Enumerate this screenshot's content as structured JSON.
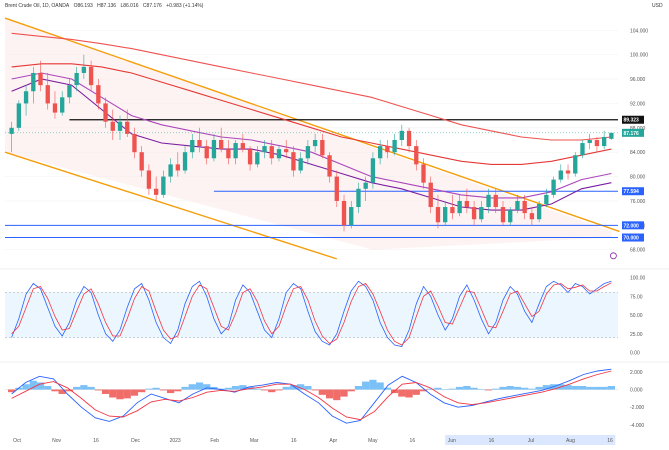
{
  "header": {
    "symbol": "Brent Crude Oil, 1D, OANDA",
    "open": "O86.193",
    "high": "H87.136",
    "low": "L86.016",
    "close": "C87.176",
    "change": "+0.983 (+1.14%)"
  },
  "currency": "USD",
  "chart_data": [
    {
      "type": "candlestick",
      "panel": "price",
      "title": "Brent Crude Oil, 1D, OANDA",
      "y_ticks": [
        68,
        72,
        76,
        80,
        84,
        88,
        92,
        96,
        100,
        104
      ],
      "y_tick_labels": [
        "68.000",
        "72.000",
        "76.000",
        "80.000",
        "84.000",
        "88.000",
        "92.000",
        "96.000",
        "100.000",
        "104.000"
      ],
      "ylim": [
        65,
        107
      ],
      "x_tick_labels": [
        "Oct",
        "Nov",
        "16",
        "Dec",
        "2023",
        "Feb",
        "Mar",
        "16",
        "Apr",
        "May",
        "16",
        "Jun",
        "16",
        "Jul",
        "Aug",
        "16"
      ],
      "horizontal_levels": [
        {
          "value": 89.323,
          "label": "89.323",
          "color": "#111111"
        },
        {
          "value": 77.594,
          "label": "77.594",
          "color": "#2962ff"
        },
        {
          "value": 72.0,
          "label": "72.000",
          "color": "#2962ff"
        },
        {
          "value": 70.0,
          "label": "70.000",
          "color": "#2962ff"
        }
      ],
      "last_price": {
        "value": 87.176,
        "label": "87.176",
        "color": "#26a69a"
      },
      "candles": [
        {
          "o": 87.0,
          "h": 89.0,
          "l": 84.0,
          "c": 88.0
        },
        {
          "o": 88.0,
          "h": 92.5,
          "l": 87.5,
          "c": 92.0
        },
        {
          "o": 92.0,
          "h": 95.0,
          "l": 90.0,
          "c": 94.0
        },
        {
          "o": 94.0,
          "h": 98.0,
          "l": 92.0,
          "c": 97.0
        },
        {
          "o": 97.0,
          "h": 99.0,
          "l": 94.0,
          "c": 95.0
        },
        {
          "o": 95.0,
          "h": 97.0,
          "l": 91.0,
          "c": 92.0
        },
        {
          "o": 92.0,
          "h": 94.0,
          "l": 89.5,
          "c": 90.5
        },
        {
          "o": 90.5,
          "h": 94.0,
          "l": 90.0,
          "c": 93.0
        },
        {
          "o": 93.0,
          "h": 96.0,
          "l": 92.0,
          "c": 95.0
        },
        {
          "o": 95.0,
          "h": 98.0,
          "l": 94.0,
          "c": 97.0
        },
        {
          "o": 97.0,
          "h": 100.0,
          "l": 96.0,
          "c": 98.0
        },
        {
          "o": 98.0,
          "h": 99.0,
          "l": 94.0,
          "c": 95.0
        },
        {
          "o": 95.0,
          "h": 96.0,
          "l": 91.0,
          "c": 92.0
        },
        {
          "o": 92.0,
          "h": 93.0,
          "l": 88.0,
          "c": 89.0
        },
        {
          "o": 89.0,
          "h": 91.0,
          "l": 86.0,
          "c": 87.5
        },
        {
          "o": 87.5,
          "h": 90.0,
          "l": 86.0,
          "c": 89.0
        },
        {
          "o": 89.0,
          "h": 91.0,
          "l": 86.5,
          "c": 87.0
        },
        {
          "o": 87.0,
          "h": 88.0,
          "l": 83.0,
          "c": 84.0
        },
        {
          "o": 84.0,
          "h": 85.0,
          "l": 80.0,
          "c": 81.0
        },
        {
          "o": 81.0,
          "h": 82.0,
          "l": 77.0,
          "c": 78.0
        },
        {
          "o": 78.0,
          "h": 80.0,
          "l": 76.0,
          "c": 77.0
        },
        {
          "o": 77.0,
          "h": 81.0,
          "l": 76.5,
          "c": 80.0
        },
        {
          "o": 80.0,
          "h": 83.0,
          "l": 79.0,
          "c": 82.0
        },
        {
          "o": 82.0,
          "h": 84.0,
          "l": 80.0,
          "c": 81.0
        },
        {
          "o": 81.0,
          "h": 85.0,
          "l": 80.5,
          "c": 84.0
        },
        {
          "o": 84.0,
          "h": 87.0,
          "l": 83.0,
          "c": 86.0
        },
        {
          "o": 86.0,
          "h": 88.0,
          "l": 84.0,
          "c": 85.0
        },
        {
          "o": 85.0,
          "h": 86.0,
          "l": 82.0,
          "c": 83.0
        },
        {
          "o": 83.0,
          "h": 87.0,
          "l": 82.5,
          "c": 86.0
        },
        {
          "o": 86.0,
          "h": 88.0,
          "l": 84.0,
          "c": 84.5
        },
        {
          "o": 84.5,
          "h": 86.0,
          "l": 82.0,
          "c": 83.0
        },
        {
          "o": 83.0,
          "h": 86.0,
          "l": 82.0,
          "c": 85.5
        },
        {
          "o": 85.5,
          "h": 87.0,
          "l": 84.0,
          "c": 84.5
        },
        {
          "o": 84.5,
          "h": 85.0,
          "l": 81.0,
          "c": 82.0
        },
        {
          "o": 82.0,
          "h": 85.0,
          "l": 81.5,
          "c": 84.0
        },
        {
          "o": 84.0,
          "h": 86.0,
          "l": 83.0,
          "c": 85.0
        },
        {
          "o": 85.0,
          "h": 86.0,
          "l": 82.0,
          "c": 83.0
        },
        {
          "o": 83.0,
          "h": 85.0,
          "l": 82.5,
          "c": 84.5
        },
        {
          "o": 84.5,
          "h": 86.0,
          "l": 83.0,
          "c": 84.0
        },
        {
          "o": 84.0,
          "h": 85.0,
          "l": 80.0,
          "c": 81.0
        },
        {
          "o": 81.0,
          "h": 84.0,
          "l": 80.5,
          "c": 83.0
        },
        {
          "o": 83.0,
          "h": 86.0,
          "l": 82.0,
          "c": 85.0
        },
        {
          "o": 85.0,
          "h": 87.0,
          "l": 84.0,
          "c": 86.0
        },
        {
          "o": 86.0,
          "h": 87.0,
          "l": 83.0,
          "c": 83.5
        },
        {
          "o": 83.5,
          "h": 84.0,
          "l": 79.0,
          "c": 80.0
        },
        {
          "o": 80.0,
          "h": 81.0,
          "l": 75.0,
          "c": 76.0
        },
        {
          "o": 76.0,
          "h": 77.0,
          "l": 71.0,
          "c": 72.0
        },
        {
          "o": 72.0,
          "h": 76.0,
          "l": 71.5,
          "c": 75.0
        },
        {
          "o": 75.0,
          "h": 79.0,
          "l": 74.0,
          "c": 78.0
        },
        {
          "o": 78.0,
          "h": 80.0,
          "l": 76.0,
          "c": 79.0
        },
        {
          "o": 79.0,
          "h": 84.0,
          "l": 78.0,
          "c": 83.0
        },
        {
          "o": 83.0,
          "h": 86.0,
          "l": 82.0,
          "c": 85.0
        },
        {
          "o": 85.0,
          "h": 86.0,
          "l": 83.0,
          "c": 84.0
        },
        {
          "o": 84.0,
          "h": 87.0,
          "l": 83.5,
          "c": 86.0
        },
        {
          "o": 86.0,
          "h": 88.5,
          "l": 85.0,
          "c": 87.5
        },
        {
          "o": 87.5,
          "h": 88.0,
          "l": 84.0,
          "c": 85.0
        },
        {
          "o": 85.0,
          "h": 86.0,
          "l": 81.0,
          "c": 82.0
        },
        {
          "o": 82.0,
          "h": 83.0,
          "l": 78.0,
          "c": 79.0
        },
        {
          "o": 79.0,
          "h": 80.0,
          "l": 74.0,
          "c": 75.0
        },
        {
          "o": 75.0,
          "h": 77.0,
          "l": 71.5,
          "c": 72.5
        },
        {
          "o": 72.5,
          "h": 76.0,
          "l": 72.0,
          "c": 75.0
        },
        {
          "o": 75.0,
          "h": 77.0,
          "l": 73.0,
          "c": 74.0
        },
        {
          "o": 74.0,
          "h": 77.0,
          "l": 73.5,
          "c": 76.0
        },
        {
          "o": 76.0,
          "h": 78.0,
          "l": 74.0,
          "c": 75.0
        },
        {
          "o": 75.0,
          "h": 76.0,
          "l": 72.0,
          "c": 73.0
        },
        {
          "o": 73.0,
          "h": 76.0,
          "l": 72.5,
          "c": 75.0
        },
        {
          "o": 75.0,
          "h": 78.0,
          "l": 74.0,
          "c": 77.0
        },
        {
          "o": 77.0,
          "h": 78.0,
          "l": 74.0,
          "c": 75.0
        },
        {
          "o": 75.0,
          "h": 76.0,
          "l": 72.0,
          "c": 72.5
        },
        {
          "o": 72.5,
          "h": 75.0,
          "l": 72.0,
          "c": 74.5
        },
        {
          "o": 74.5,
          "h": 77.0,
          "l": 74.0,
          "c": 76.0
        },
        {
          "o": 76.0,
          "h": 77.0,
          "l": 73.0,
          "c": 74.0
        },
        {
          "o": 74.0,
          "h": 75.0,
          "l": 72.0,
          "c": 73.0
        },
        {
          "o": 73.0,
          "h": 76.0,
          "l": 72.5,
          "c": 75.5
        },
        {
          "o": 75.5,
          "h": 78.0,
          "l": 75.0,
          "c": 77.0
        },
        {
          "o": 77.0,
          "h": 80.0,
          "l": 76.5,
          "c": 79.5
        },
        {
          "o": 79.5,
          "h": 82.0,
          "l": 79.0,
          "c": 81.0
        },
        {
          "o": 81.0,
          "h": 82.0,
          "l": 79.5,
          "c": 80.5
        },
        {
          "o": 80.5,
          "h": 84.0,
          "l": 80.0,
          "c": 83.5
        },
        {
          "o": 83.5,
          "h": 86.0,
          "l": 83.0,
          "c": 85.5
        },
        {
          "o": 85.5,
          "h": 87.0,
          "l": 84.5,
          "c": 86.0
        },
        {
          "o": 86.0,
          "h": 86.5,
          "l": 84.0,
          "c": 85.0
        },
        {
          "o": 85.0,
          "h": 87.5,
          "l": 84.5,
          "c": 86.5
        },
        {
          "o": 86.193,
          "h": 87.136,
          "l": 86.016,
          "c": 87.176
        }
      ],
      "moving_averages": [
        {
          "color": "#ef5350",
          "values": [
            103.5,
            103.0,
            102.5,
            101.8,
            101.0,
            100.0,
            99.0,
            98.0,
            97.0,
            96.0,
            95.0,
            94.0,
            93.0,
            91.5,
            90.0,
            88.5,
            87.5,
            86.5,
            86.0,
            86.0,
            86.5
          ]
        },
        {
          "color": "#e53935",
          "values": [
            98.0,
            98.5,
            98.5,
            98.0,
            97.0,
            95.5,
            94.0,
            92.5,
            91.0,
            89.5,
            88.0,
            86.5,
            85.5,
            84.5,
            83.5,
            82.5,
            82.0,
            82.0,
            82.5,
            83.5,
            84.5
          ]
        },
        {
          "color": "#ab47bc",
          "values": [
            96.0,
            97.0,
            96.0,
            93.0,
            90.0,
            88.5,
            87.5,
            86.5,
            86.0,
            85.0,
            84.0,
            82.0,
            80.0,
            79.0,
            78.0,
            77.0,
            76.5,
            76.5,
            77.5,
            79.5,
            80.5
          ]
        },
        {
          "color": "#7b1fa2",
          "values": [
            94.0,
            96.0,
            95.0,
            91.0,
            87.0,
            85.5,
            85.0,
            84.5,
            84.5,
            83.5,
            82.0,
            80.5,
            79.0,
            78.0,
            76.5,
            75.0,
            74.5,
            74.5,
            75.5,
            78.0,
            79.0
          ]
        }
      ],
      "trend_channel": {
        "color": "#f59e0b",
        "upper": [
          [
            0,
            106.0
          ],
          [
            83,
            71.0
          ]
        ],
        "lower": [
          [
            0,
            84.0
          ],
          [
            45,
            66.5
          ]
        ]
      }
    },
    {
      "type": "line",
      "panel": "stochastic",
      "y_ticks": [
        0,
        25,
        50,
        75,
        100
      ],
      "y_tick_labels": [
        "0.00",
        "25.00",
        "50.00",
        "75.00",
        "100.00"
      ],
      "ylim": [
        -10,
        110
      ],
      "bands": [
        20,
        80
      ],
      "series": [
        {
          "color": "#2962ff",
          "values": [
            20,
            45,
            78,
            92,
            85,
            60,
            35,
            22,
            40,
            70,
            88,
            80,
            50,
            25,
            15,
            30,
            60,
            85,
            92,
            70,
            40,
            20,
            12,
            30,
            65,
            88,
            95,
            75,
            45,
            25,
            35,
            70,
            90,
            80,
            55,
            30,
            20,
            45,
            80,
            92,
            85,
            55,
            28,
            15,
            10,
            25,
            55,
            82,
            95,
            88,
            70,
            40,
            20,
            10,
            8,
            30,
            65,
            88,
            75,
            50,
            30,
            45,
            75,
            90,
            70,
            45,
            25,
            40,
            70,
            88,
            78,
            55,
            40,
            65,
            88,
            95,
            90,
            80,
            92,
            88,
            78,
            85,
            92,
            95
          ]
        },
        {
          "color": "#f23645",
          "values": [
            25,
            35,
            60,
            85,
            88,
            72,
            48,
            30,
            32,
            55,
            78,
            85,
            65,
            40,
            22,
            22,
            45,
            72,
            88,
            82,
            55,
            30,
            18,
            22,
            48,
            75,
            90,
            85,
            60,
            35,
            30,
            52,
            80,
            85,
            68,
            42,
            25,
            35,
            62,
            85,
            88,
            70,
            42,
            22,
            12,
            18,
            40,
            68,
            88,
            92,
            78,
            55,
            30,
            15,
            10,
            20,
            48,
            75,
            82,
            62,
            40,
            38,
            60,
            82,
            80,
            58,
            35,
            33,
            55,
            78,
            82,
            65,
            48,
            55,
            78,
            90,
            92,
            85,
            87,
            90,
            82,
            82,
            88,
            93
          ]
        }
      ]
    },
    {
      "type": "bar",
      "panel": "macd",
      "y_ticks": [
        -4,
        -2,
        0,
        2
      ],
      "y_tick_labels": [
        "-4.000",
        "-2.000",
        "0.000",
        "2.000"
      ],
      "ylim": [
        -4.8,
        3.0
      ],
      "histogram": [
        -0.3,
        0.2,
        0.6,
        1.0,
        0.8,
        0.4,
        -0.2,
        -0.5,
        -0.2,
        0.3,
        0.5,
        0.3,
        -0.1,
        -0.5,
        -0.9,
        -1.1,
        -1.0,
        -0.7,
        -0.3,
        0.1,
        0.2,
        -0.1,
        -0.4,
        -0.2,
        0.3,
        0.6,
        0.8,
        0.6,
        0.3,
        0.1,
        0.2,
        0.4,
        0.5,
        0.3,
        0.1,
        -0.1,
        -0.3,
        -0.1,
        0.3,
        0.5,
        0.6,
        0.4,
        -0.1,
        -0.6,
        -1.0,
        -1.2,
        -0.8,
        -0.2,
        0.4,
        0.9,
        1.1,
        0.8,
        0.2,
        -0.4,
        -0.8,
        -0.9,
        -0.6,
        -0.2,
        0.1,
        0.2,
        0.0,
        0.1,
        0.3,
        0.4,
        0.2,
        0.0,
        -0.1,
        0.1,
        0.3,
        0.4,
        0.3,
        0.2,
        0.1,
        0.3,
        0.5,
        0.6,
        0.6,
        0.5,
        0.4,
        0.4,
        0.3,
        0.3,
        0.3,
        0.4
      ],
      "series": [
        {
          "color": "#2962ff",
          "values": [
            -0.5,
            0.8,
            1.5,
            1.2,
            -0.5,
            -2.0,
            -3.2,
            -3.6,
            -3.0,
            -1.5,
            -0.5,
            -1.0,
            -1.5,
            -0.5,
            0.2,
            0.0,
            -0.3,
            0.3,
            0.5,
            0.8,
            0.6,
            -0.5,
            -1.5,
            -3.0,
            -3.8,
            -3.5,
            -1.5,
            0.5,
            1.5,
            0.8,
            -0.5,
            -1.5,
            -2.0,
            -1.8,
            -1.4,
            -1.0,
            -0.7,
            -0.4,
            -0.1,
            0.4,
            1.0,
            1.7,
            2.1,
            2.3
          ]
        },
        {
          "color": "#f23645",
          "values": [
            -1.0,
            -0.2,
            0.6,
            0.9,
            0.2,
            -1.0,
            -2.3,
            -3.0,
            -3.1,
            -2.4,
            -1.4,
            -1.1,
            -1.3,
            -0.9,
            -0.3,
            -0.1,
            -0.2,
            0.1,
            0.3,
            0.6,
            0.6,
            0.0,
            -0.9,
            -2.1,
            -3.1,
            -3.4,
            -2.5,
            -0.8,
            0.6,
            0.8,
            0.2,
            -0.8,
            -1.5,
            -1.7,
            -1.5,
            -1.2,
            -0.9,
            -0.6,
            -0.3,
            0.1,
            0.6,
            1.2,
            1.7,
            2.1
          ]
        }
      ]
    }
  ]
}
